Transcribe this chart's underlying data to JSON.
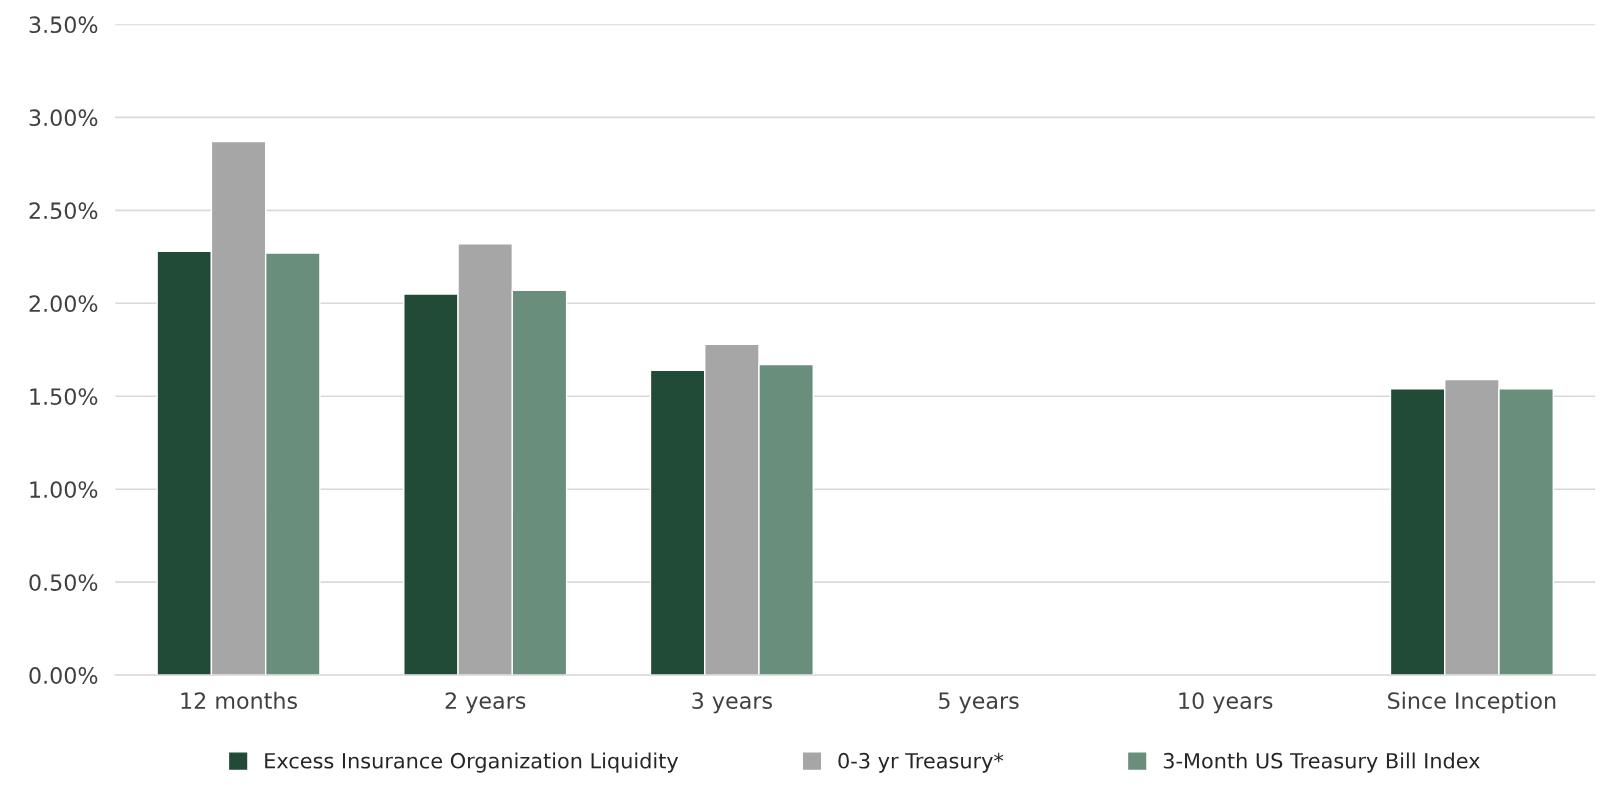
{
  "chart_data": {
    "type": "bar",
    "categories": [
      "12 months",
      "2 years",
      "3 years",
      "5 years",
      "10 years",
      "Since Inception"
    ],
    "series": [
      {
        "name": "Excess Insurance Organization Liquidity",
        "color": "#214a37",
        "values": [
          2.28,
          2.05,
          1.64,
          null,
          null,
          1.54
        ]
      },
      {
        "name": "0-3 yr Treasury*",
        "color": "#a6a6a6",
        "values": [
          2.87,
          2.32,
          1.78,
          null,
          null,
          1.59
        ]
      },
      {
        "name": "3-Month US Treasury Bill Index",
        "color": "#698e7b",
        "values": [
          2.27,
          2.07,
          1.67,
          null,
          null,
          1.54
        ]
      }
    ],
    "ylim": [
      0,
      3.5
    ],
    "yticks": [
      {
        "value": 0,
        "label": "0.00%"
      },
      {
        "value": 0.5,
        "label": "0.50%"
      },
      {
        "value": 1,
        "label": "1.00%"
      },
      {
        "value": 1.5,
        "label": "1.50%"
      },
      {
        "value": 2,
        "label": "2.00%"
      },
      {
        "value": 2.5,
        "label": "2.50%"
      },
      {
        "value": 3,
        "label": "3.00%"
      },
      {
        "value": 3.5,
        "label": "3.50%"
      }
    ],
    "grid": "y",
    "legend": "bottom"
  }
}
